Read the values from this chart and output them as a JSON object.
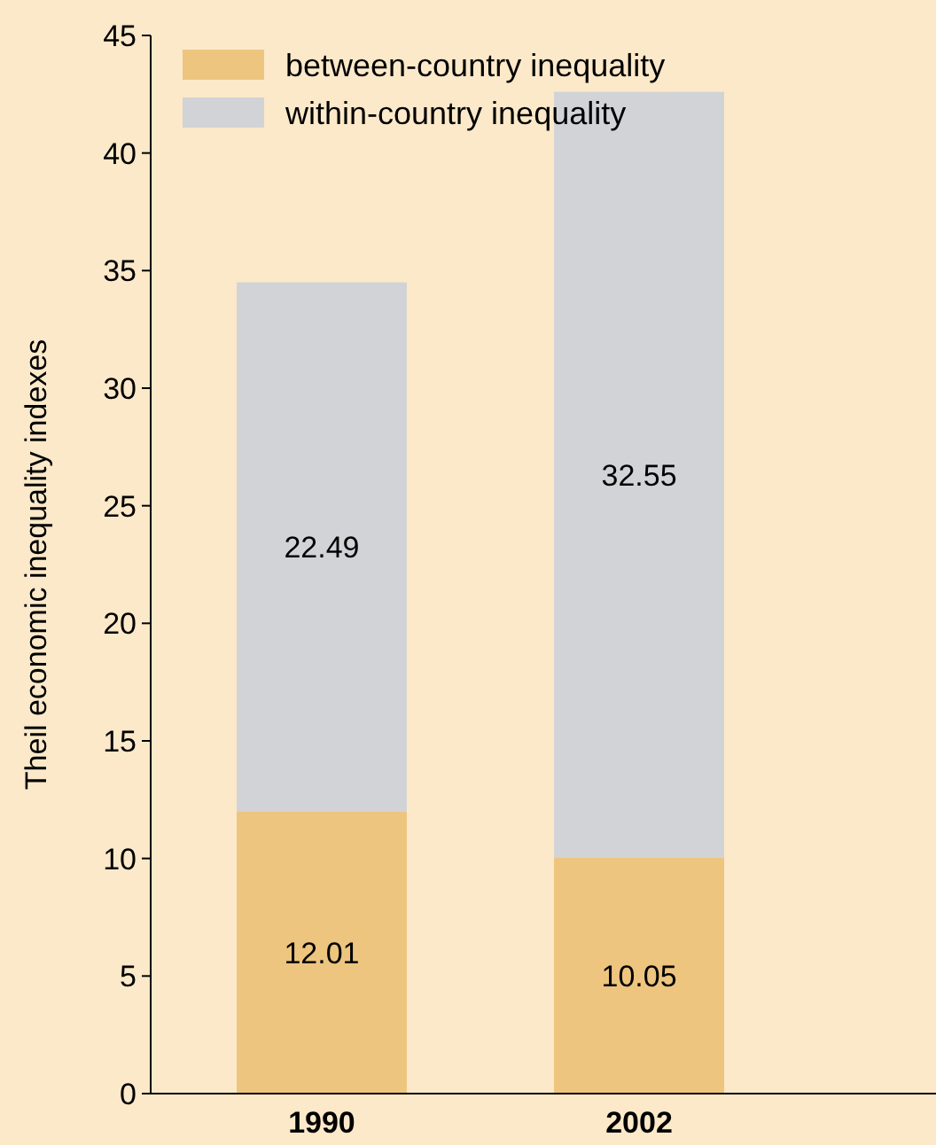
{
  "chart_data": {
    "type": "bar",
    "ylabel": "Theil economic inequality indexes",
    "categories": [
      "1990",
      "2002"
    ],
    "stacked": true,
    "series": [
      {
        "name": "between-country inequality",
        "color": "#edc57f",
        "values": [
          12.01,
          10.05
        ]
      },
      {
        "name": "within-country inequality",
        "color": "#d1d3d6",
        "values": [
          22.49,
          32.55
        ]
      }
    ],
    "ylim": [
      0,
      45
    ],
    "yticks": [
      0,
      5,
      10,
      15,
      20,
      25,
      30,
      35,
      40,
      45
    ],
    "data_labels": true,
    "legend": "top left",
    "grid": false
  }
}
